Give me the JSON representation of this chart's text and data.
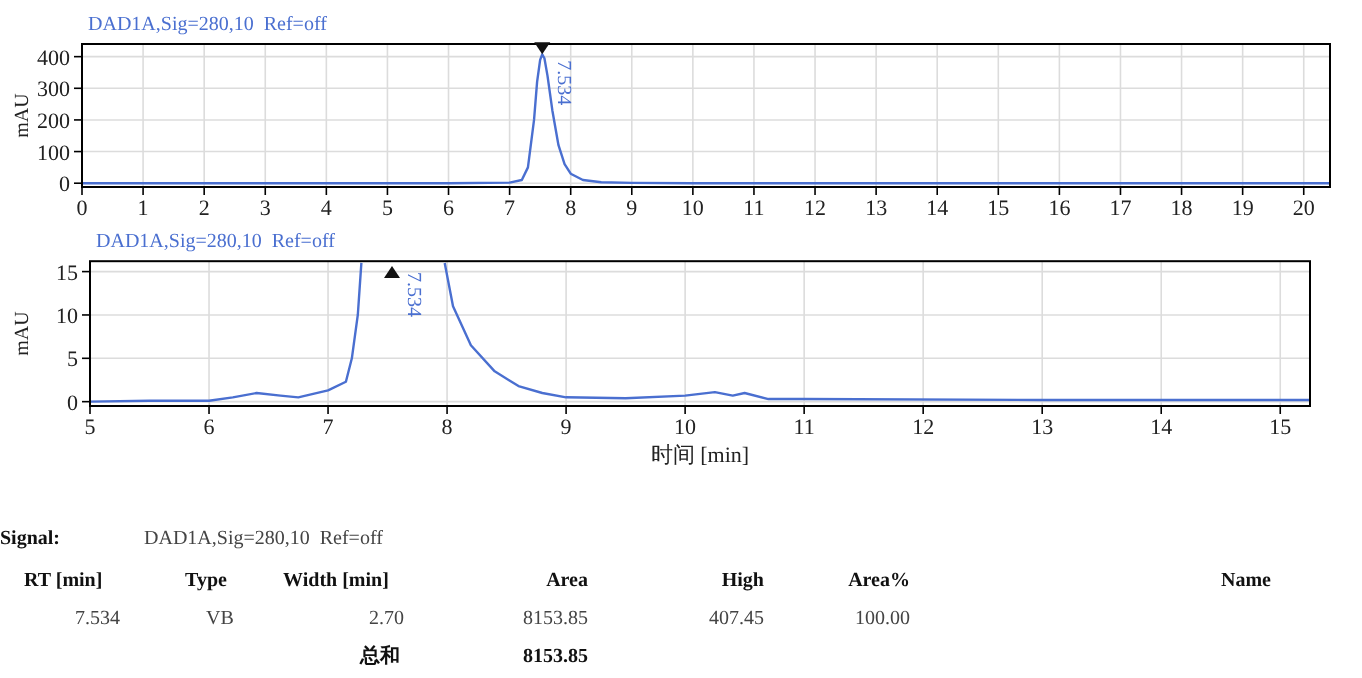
{
  "chart_data": [
    {
      "type": "line",
      "title": "DAD1A,Sig=280,10  Ref=off",
      "ylabel": "mAU",
      "xlim": [
        0,
        20.43
      ],
      "ylim": [
        -12,
        440
      ],
      "xticks": [
        0,
        1,
        2,
        3,
        4,
        5,
        6,
        7,
        8,
        9,
        10,
        11,
        12,
        13,
        14,
        15,
        16,
        17,
        18,
        19,
        20
      ],
      "yticks": [
        0,
        100,
        200,
        300,
        400
      ],
      "grid": true,
      "series": [
        {
          "color": "#4a6fd0",
          "x": [
            0,
            3,
            6,
            7.0,
            7.2,
            7.3,
            7.4,
            7.45,
            7.5,
            7.534,
            7.57,
            7.62,
            7.7,
            7.8,
            7.9,
            8.0,
            8.2,
            8.5,
            9,
            10,
            15,
            20.43
          ],
          "values": [
            0,
            0,
            0,
            2,
            10,
            50,
            200,
            320,
            390,
            407.45,
            395,
            340,
            230,
            120,
            60,
            30,
            10,
            3,
            1,
            0,
            0,
            0
          ]
        }
      ],
      "annotations": [
        {
          "text": "7.534",
          "x": 7.534,
          "y": 407.45
        }
      ]
    },
    {
      "type": "line",
      "title": "DAD1A,Sig=280,10  Ref=off",
      "xlabel": "时间 [min]",
      "ylabel": "mAU",
      "xlim": [
        5,
        15.25
      ],
      "ylim": [
        -0.5,
        16.2
      ],
      "xticks": [
        5,
        6,
        7,
        8,
        9,
        10,
        11,
        12,
        13,
        14,
        15
      ],
      "yticks": [
        0,
        5,
        10,
        15
      ],
      "grid": true,
      "series": [
        {
          "color": "#4a6fd0",
          "x": [
            5,
            5.5,
            6,
            6.2,
            6.4,
            6.6,
            6.75,
            7.0,
            7.15,
            7.2,
            7.25,
            7.28,
            7.5,
            7.98,
            8.05,
            8.2,
            8.4,
            8.6,
            8.8,
            9.0,
            9.5,
            10.0,
            10.25,
            10.4,
            10.5,
            10.7,
            11,
            13,
            15.25
          ],
          "values": [
            0.0,
            0.1,
            0.1,
            0.5,
            1.0,
            0.7,
            0.5,
            1.3,
            2.3,
            5,
            10,
            16,
            null,
            16,
            11,
            6.5,
            3.5,
            1.8,
            1.0,
            0.5,
            0.4,
            0.7,
            1.1,
            0.7,
            1.0,
            0.3,
            0.3,
            0.2,
            0.2
          ]
        }
      ],
      "annotations": [
        "7.534"
      ]
    },
    {
      "type": "other",
      "annotations": [
        "Signal:",
        "DAD1A,Sig=280,10  Ref=off",
        "RT [min]",
        "Type",
        "Width [min]",
        "Area",
        "High",
        "Area%",
        "Name",
        "7.534",
        "VB",
        "2.70",
        "8153.85",
        "407.45",
        "100.00",
        "总和",
        "8153.85"
      ]
    }
  ]
}
